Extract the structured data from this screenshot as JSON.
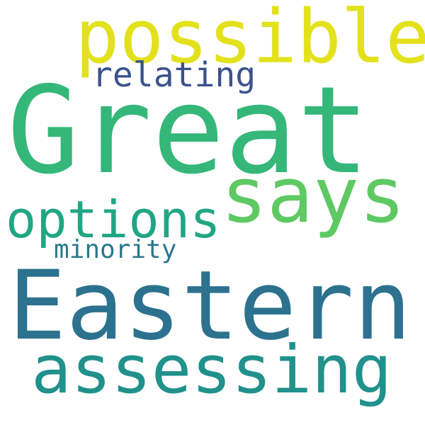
{
  "words": {
    "great": {
      "text": "Great",
      "color": "#35b779"
    },
    "eastern": {
      "text": "Eastern",
      "color": "#2c728e"
    },
    "possible": {
      "text": "possible",
      "color": "#e3e11c"
    },
    "says": {
      "text": "says",
      "color": "#5ec962"
    },
    "assessing": {
      "text": "assessing",
      "color": "#21918c"
    },
    "options": {
      "text": "options",
      "color": "#21a685"
    },
    "relating": {
      "text": "relating",
      "color": "#3b528b"
    },
    "minority": {
      "text": "minority",
      "color": "#2a788e"
    }
  }
}
